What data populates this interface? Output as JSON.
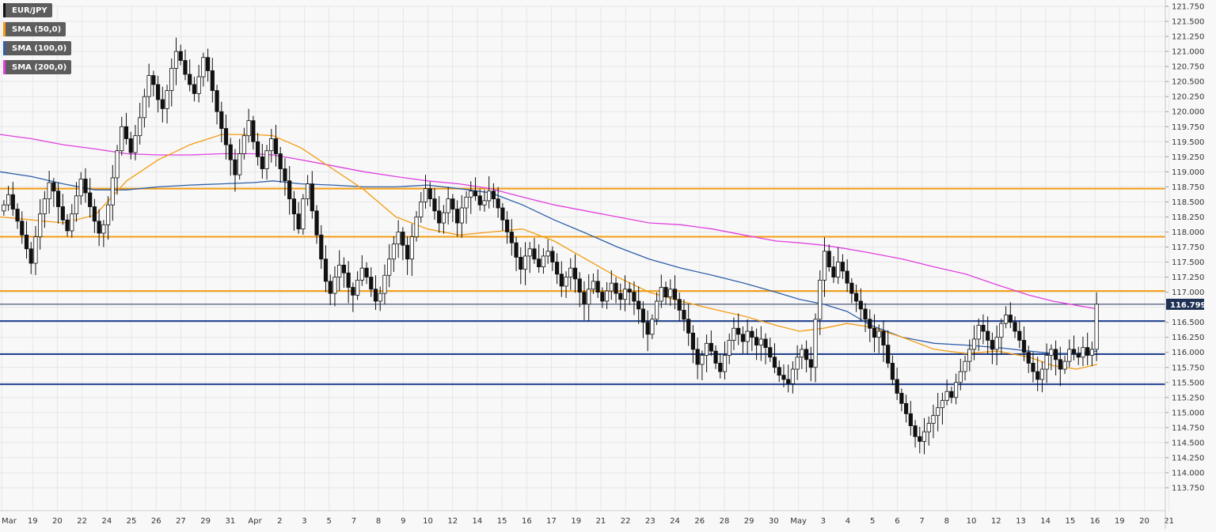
{
  "chart_data": {
    "type": "candlestick",
    "symbol": "EUR/JPY",
    "ylim": [
      113.75,
      121.75
    ],
    "y_ticks": [
      "121.750",
      "121.500",
      "121.250",
      "121.000",
      "120.750",
      "120.500",
      "120.250",
      "120.000",
      "119.750",
      "119.500",
      "119.250",
      "119.000",
      "118.750",
      "118.500",
      "118.250",
      "118.000",
      "117.750",
      "117.500",
      "117.250",
      "117.000",
      "116.750",
      "116.500",
      "116.250",
      "116.000",
      "115.750",
      "115.500",
      "115.250",
      "115.000",
      "114.750",
      "114.500",
      "114.250",
      "114.000",
      "113.750"
    ],
    "x_labels": [
      "Mar",
      "19",
      "20",
      "22",
      "24",
      "25",
      "26",
      "27",
      "29",
      "31",
      "Apr",
      "2",
      "3",
      "5",
      "7",
      "8",
      "9",
      "10",
      "12",
      "14",
      "15",
      "16",
      "17",
      "19",
      "21",
      "22",
      "23",
      "24",
      "26",
      "28",
      "29",
      "30",
      "May",
      "3",
      "4",
      "5",
      "6",
      "7",
      "8",
      "10",
      "12",
      "13",
      "14",
      "15",
      "16",
      "19",
      "20",
      "21"
    ],
    "current_price": "116.799",
    "legend": [
      {
        "label": "EUR/JPY",
        "color": "#111111"
      },
      {
        "label": "SMA (50,0)",
        "color": "#f39c12"
      },
      {
        "label": "SMA (100,0)",
        "color": "#2e5fa8"
      },
      {
        "label": "SMA (200,0)",
        "color": "#e040e0"
      }
    ],
    "resistance_levels": [
      118.72,
      117.92,
      117.02
    ],
    "support_levels": [
      116.52,
      115.97,
      115.47
    ],
    "colors": {
      "resistance": "#f39c12",
      "support": "#1f3f8f",
      "sma50": "#f39c12",
      "sma100": "#2e5fa8",
      "sma200": "#e040e0",
      "price_tag": "#1f3055",
      "grid": "#e6e6e6"
    },
    "series_closes": [
      118.45,
      118.62,
      118.38,
      118.18,
      117.95,
      117.72,
      117.48,
      117.92,
      118.3,
      118.55,
      118.82,
      118.68,
      118.42,
      118.2,
      118.02,
      118.3,
      118.6,
      118.88,
      118.65,
      118.42,
      118.18,
      117.98,
      118.12,
      118.45,
      118.9,
      119.35,
      119.75,
      119.55,
      119.32,
      119.6,
      119.9,
      120.25,
      120.6,
      120.45,
      120.2,
      120.05,
      120.35,
      120.72,
      121.0,
      120.85,
      120.62,
      120.45,
      120.3,
      120.58,
      120.9,
      120.68,
      120.35,
      120.0,
      119.72,
      119.45,
      119.2,
      118.95,
      119.3,
      119.6,
      119.85,
      119.5,
      119.25,
      119.05,
      119.35,
      119.55,
      119.3,
      119.05,
      118.85,
      118.55,
      118.3,
      118.05,
      118.55,
      118.8,
      118.35,
      117.95,
      117.55,
      117.18,
      116.98,
      117.25,
      117.45,
      117.32,
      117.08,
      116.95,
      117.2,
      117.4,
      117.25,
      117.05,
      116.85,
      116.98,
      117.28,
      117.55,
      117.8,
      118.0,
      117.78,
      117.55,
      117.92,
      118.25,
      118.5,
      118.72,
      118.55,
      118.35,
      118.15,
      118.32,
      118.55,
      118.38,
      118.15,
      118.4,
      118.58,
      118.68,
      118.6,
      118.45,
      118.52,
      118.68,
      118.55,
      118.4,
      118.2,
      118.0,
      117.82,
      117.58,
      117.38,
      117.6,
      117.72,
      117.55,
      117.42,
      117.6,
      117.68,
      117.5,
      117.3,
      117.1,
      117.25,
      117.4,
      117.22,
      117.0,
      116.8,
      117.05,
      117.18,
      117.0,
      116.85,
      117.02,
      117.15,
      116.98,
      116.88,
      117.05,
      117.0,
      116.85,
      116.72,
      116.5,
      116.3,
      116.55,
      116.85,
      117.08,
      116.92,
      117.05,
      116.88,
      116.7,
      116.55,
      116.32,
      116.05,
      115.8,
      115.95,
      116.15,
      116.02,
      115.82,
      115.68,
      115.95,
      116.2,
      116.4,
      116.3,
      116.18,
      116.35,
      116.25,
      116.12,
      116.22,
      116.08,
      115.92,
      115.75,
      115.62,
      115.55,
      115.48,
      115.72,
      115.92,
      116.05,
      115.88,
      115.75,
      116.55,
      117.2,
      117.68,
      117.42,
      117.25,
      117.5,
      117.35,
      117.15,
      116.98,
      116.85,
      116.72,
      116.55,
      116.4,
      116.25,
      116.35,
      116.12,
      115.82,
      115.55,
      115.32,
      115.15,
      114.98,
      114.78,
      114.6,
      114.52,
      114.68,
      114.82,
      114.95,
      115.08,
      115.2,
      115.35,
      115.25,
      115.5,
      115.68,
      115.85,
      116.05,
      116.22,
      116.45,
      116.35,
      116.2,
      116.05,
      116.25,
      116.48,
      116.62,
      116.5,
      116.35,
      116.2,
      116.0,
      115.82,
      115.68,
      115.55,
      115.72,
      115.95,
      116.05,
      115.88,
      115.72,
      115.85,
      116.05,
      115.98,
      115.92,
      116.08,
      115.95,
      116.05,
      116.8
    ],
    "sma50_points": [
      [
        0,
        118.25
      ],
      [
        40,
        118.2
      ],
      [
        80,
        118.15
      ],
      [
        120,
        118.28
      ],
      [
        160,
        118.85
      ],
      [
        200,
        119.2
      ],
      [
        240,
        119.45
      ],
      [
        280,
        119.62
      ],
      [
        320,
        119.62
      ],
      [
        345,
        119.6
      ],
      [
        380,
        119.4
      ],
      [
        420,
        119.05
      ],
      [
        460,
        118.7
      ],
      [
        500,
        118.25
      ],
      [
        540,
        118.05
      ],
      [
        580,
        117.95
      ],
      [
        620,
        118.0
      ],
      [
        660,
        118.05
      ],
      [
        700,
        117.85
      ],
      [
        740,
        117.55
      ],
      [
        780,
        117.25
      ],
      [
        820,
        117.0
      ],
      [
        860,
        116.85
      ],
      [
        900,
        116.72
      ],
      [
        940,
        116.6
      ],
      [
        980,
        116.45
      ],
      [
        1010,
        116.35
      ],
      [
        1040,
        116.4
      ],
      [
        1070,
        116.48
      ],
      [
        1100,
        116.42
      ],
      [
        1140,
        116.25
      ],
      [
        1180,
        116.05
      ],
      [
        1220,
        115.98
      ],
      [
        1260,
        116.02
      ],
      [
        1300,
        115.92
      ],
      [
        1330,
        115.78
      ],
      [
        1360,
        115.72
      ],
      [
        1386,
        115.8
      ]
    ],
    "sma100_points": [
      [
        0,
        119.0
      ],
      [
        40,
        118.92
      ],
      [
        80,
        118.8
      ],
      [
        120,
        118.7
      ],
      [
        160,
        118.7
      ],
      [
        200,
        118.75
      ],
      [
        240,
        118.78
      ],
      [
        280,
        118.8
      ],
      [
        320,
        118.82
      ],
      [
        345,
        118.85
      ],
      [
        380,
        118.8
      ],
      [
        420,
        118.78
      ],
      [
        460,
        118.75
      ],
      [
        500,
        118.75
      ],
      [
        540,
        118.78
      ],
      [
        580,
        118.72
      ],
      [
        620,
        118.65
      ],
      [
        660,
        118.45
      ],
      [
        700,
        118.2
      ],
      [
        740,
        117.98
      ],
      [
        780,
        117.75
      ],
      [
        820,
        117.55
      ],
      [
        860,
        117.4
      ],
      [
        900,
        117.28
      ],
      [
        940,
        117.15
      ],
      [
        980,
        117.0
      ],
      [
        1010,
        116.88
      ],
      [
        1040,
        116.8
      ],
      [
        1070,
        116.68
      ],
      [
        1100,
        116.45
      ],
      [
        1140,
        116.25
      ],
      [
        1180,
        116.15
      ],
      [
        1220,
        116.12
      ],
      [
        1260,
        116.08
      ],
      [
        1300,
        116.02
      ],
      [
        1330,
        115.98
      ],
      [
        1360,
        115.98
      ],
      [
        1386,
        116.02
      ]
    ],
    "sma200_points": [
      [
        0,
        119.62
      ],
      [
        40,
        119.55
      ],
      [
        80,
        119.45
      ],
      [
        120,
        119.38
      ],
      [
        160,
        119.3
      ],
      [
        200,
        119.28
      ],
      [
        240,
        119.28
      ],
      [
        280,
        119.3
      ],
      [
        320,
        119.3
      ],
      [
        345,
        119.28
      ],
      [
        380,
        119.2
      ],
      [
        420,
        119.1
      ],
      [
        460,
        119.0
      ],
      [
        500,
        118.92
      ],
      [
        540,
        118.85
      ],
      [
        580,
        118.8
      ],
      [
        620,
        118.72
      ],
      [
        660,
        118.58
      ],
      [
        700,
        118.45
      ],
      [
        740,
        118.35
      ],
      [
        780,
        118.25
      ],
      [
        820,
        118.15
      ],
      [
        860,
        118.12
      ],
      [
        900,
        118.05
      ],
      [
        940,
        117.95
      ],
      [
        980,
        117.85
      ],
      [
        1010,
        117.82
      ],
      [
        1040,
        117.78
      ],
      [
        1070,
        117.72
      ],
      [
        1100,
        117.65
      ],
      [
        1140,
        117.55
      ],
      [
        1180,
        117.42
      ],
      [
        1220,
        117.3
      ],
      [
        1260,
        117.12
      ],
      [
        1300,
        116.95
      ],
      [
        1330,
        116.85
      ],
      [
        1360,
        116.78
      ],
      [
        1386,
        116.72
      ]
    ]
  }
}
